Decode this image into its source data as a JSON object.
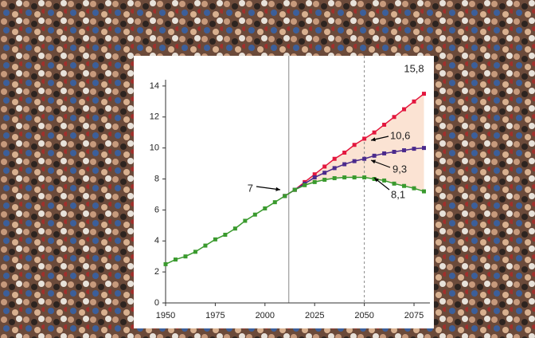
{
  "chart_data": {
    "type": "line",
    "x": [
      1950,
      1955,
      1960,
      1965,
      1970,
      1975,
      1980,
      1985,
      1990,
      1995,
      2000,
      2005,
      2010,
      2015,
      2020,
      2025,
      2030,
      2035,
      2040,
      2045,
      2050,
      2055,
      2060,
      2065,
      2070,
      2075,
      2080
    ],
    "series": [
      {
        "color": "#e3173e",
        "values": [
          null,
          null,
          null,
          null,
          null,
          null,
          null,
          null,
          null,
          null,
          null,
          null,
          6.9,
          7.3,
          7.8,
          8.3,
          8.8,
          9.3,
          9.7,
          10.2,
          10.6,
          11.0,
          11.5,
          12.0,
          12.5,
          13.0,
          13.5
        ]
      },
      {
        "color": "#4b2a8c",
        "values": [
          null,
          null,
          null,
          null,
          null,
          null,
          null,
          null,
          null,
          null,
          null,
          null,
          6.9,
          7.3,
          7.7,
          8.1,
          8.4,
          8.7,
          8.95,
          9.15,
          9.3,
          9.5,
          9.65,
          9.75,
          9.85,
          9.95,
          10.0
        ]
      },
      {
        "color": "#3a9a2e",
        "values": [
          2.5,
          2.8,
          3.0,
          3.3,
          3.7,
          4.1,
          4.4,
          4.8,
          5.3,
          5.7,
          6.1,
          6.5,
          6.9,
          7.3,
          7.6,
          7.8,
          7.95,
          8.05,
          8.1,
          8.1,
          8.1,
          8.0,
          7.9,
          7.7,
          7.55,
          7.4,
          7.2
        ]
      }
    ],
    "xlim": [
      1950,
      2083
    ],
    "ylim": [
      0,
      16
    ],
    "xticks": [
      1950,
      1975,
      2000,
      2025,
      2050,
      2075
    ],
    "yticks": [
      0,
      2,
      4,
      6,
      8,
      10,
      12,
      14
    ],
    "reference_lines": [
      {
        "x": 2012,
        "style": "solid"
      },
      {
        "x": 2050,
        "style": "dashed"
      }
    ],
    "band_color": "#fbe3d3",
    "annotations": [
      {
        "text": "15,8"
      },
      {
        "text": "10,6"
      },
      {
        "text": "9,3"
      },
      {
        "text": "8,1"
      },
      {
        "text": "7"
      }
    ]
  }
}
